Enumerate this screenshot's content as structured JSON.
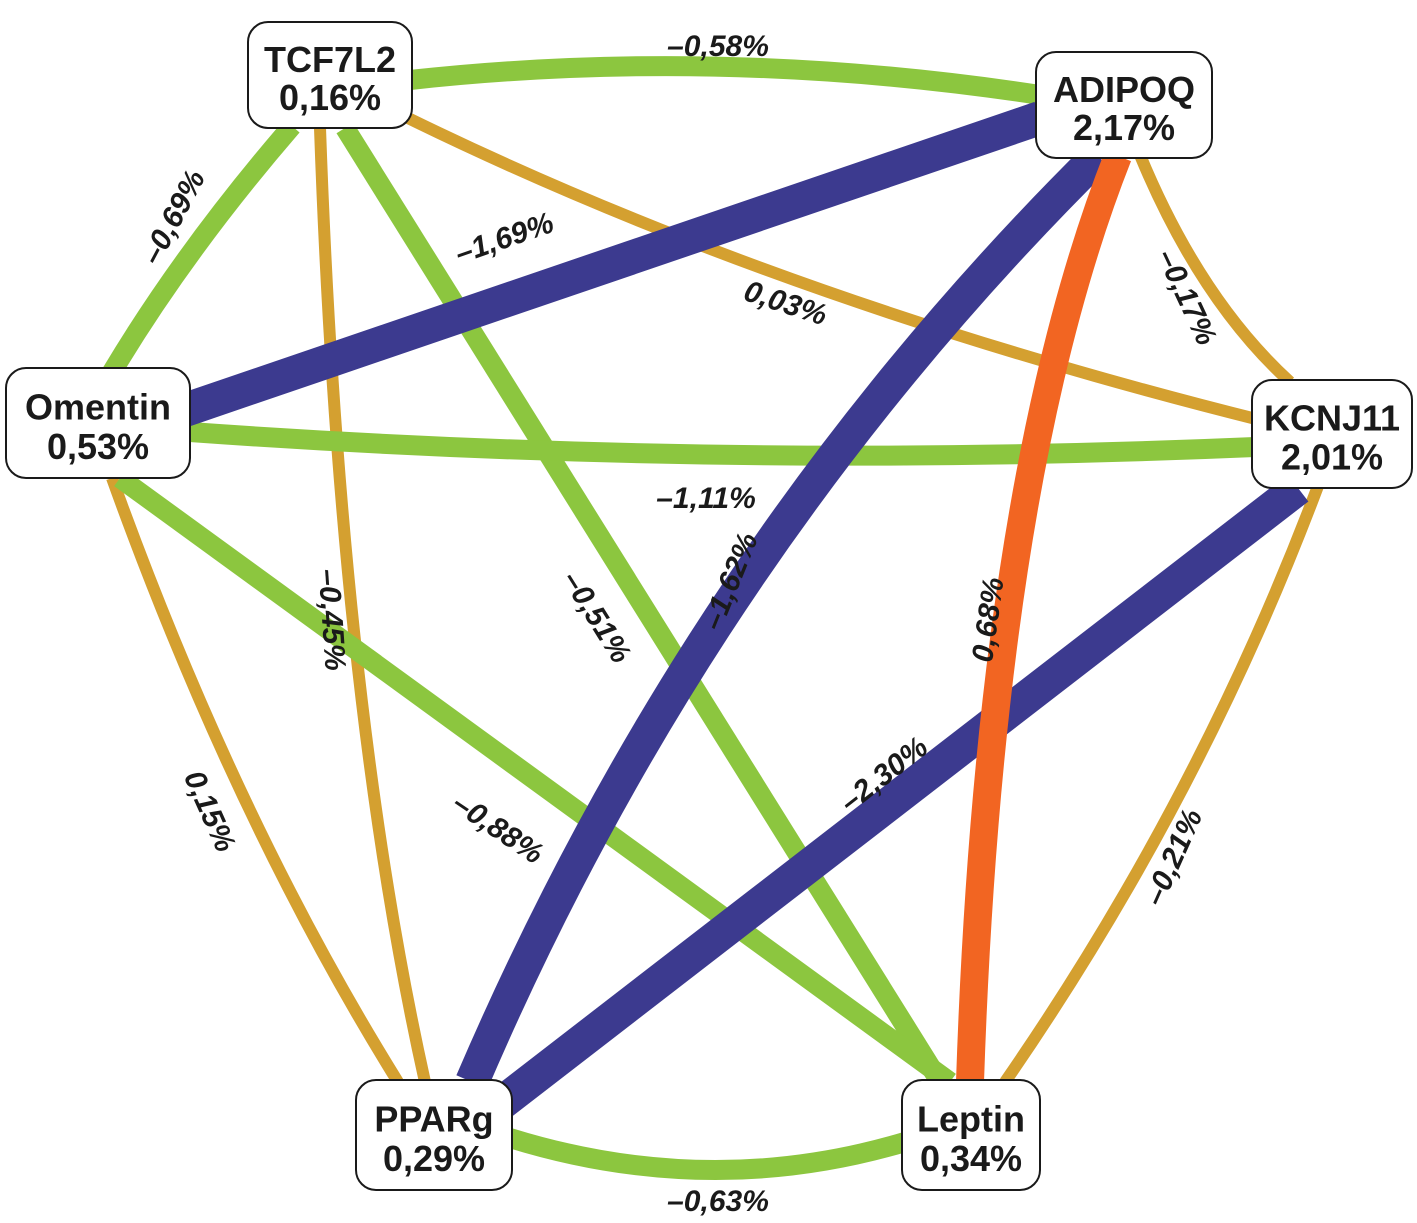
{
  "colors": {
    "weak_negative": "#8cc63f",
    "strong_negative": "#3c3a8f",
    "weak_positive": "#d4a030",
    "strong_positive": "#f26522"
  },
  "nodes": [
    {
      "id": "TCF7L2",
      "name": "TCF7L2",
      "value": "0,16%"
    },
    {
      "id": "ADIPOQ",
      "name": "ADIPOQ",
      "value": "2,17%"
    },
    {
      "id": "Omentin",
      "name": "Omentin",
      "value": "0,53%"
    },
    {
      "id": "KCNJ11",
      "name": "KCNJ11",
      "value": "2,01%"
    },
    {
      "id": "PPARg",
      "name": "PPARg",
      "value": "0,29%"
    },
    {
      "id": "Leptin",
      "name": "Leptin",
      "value": "0,34%"
    }
  ],
  "edges": [
    {
      "from": "TCF7L2",
      "to": "ADIPOQ",
      "label": "–0,58%",
      "kind": "weak_negative"
    },
    {
      "from": "TCF7L2",
      "to": "Omentin",
      "label": "–0,69%",
      "kind": "weak_negative"
    },
    {
      "from": "TCF7L2",
      "to": "KCNJ11",
      "label": "0,03%",
      "kind": "weak_positive"
    },
    {
      "from": "TCF7L2",
      "to": "PPARg",
      "label": "–0,45%",
      "kind": "weak_positive"
    },
    {
      "from": "TCF7L2",
      "to": "Leptin",
      "label": "–0,51%",
      "kind": "weak_negative"
    },
    {
      "from": "Omentin",
      "to": "ADIPOQ",
      "label": "–1,69%",
      "kind": "strong_negative"
    },
    {
      "from": "ADIPOQ",
      "to": "KCNJ11",
      "label": "–0,17%",
      "kind": "weak_positive"
    },
    {
      "from": "ADIPOQ",
      "to": "PPARg",
      "label": "–1,62%",
      "kind": "strong_negative"
    },
    {
      "from": "ADIPOQ",
      "to": "Leptin",
      "label": "0,68%",
      "kind": "strong_positive"
    },
    {
      "from": "Omentin",
      "to": "KCNJ11",
      "label": "–1,11%",
      "kind": "weak_negative"
    },
    {
      "from": "Omentin",
      "to": "Leptin",
      "label": "–0,88%",
      "kind": "weak_negative"
    },
    {
      "from": "Omentin",
      "to": "PPARg",
      "label": "0,15%",
      "kind": "weak_positive"
    },
    {
      "from": "KCNJ11",
      "to": "PPARg",
      "label": "–2,30%",
      "kind": "strong_negative"
    },
    {
      "from": "KCNJ11",
      "to": "Leptin",
      "label": "–0,21%",
      "kind": "weak_positive"
    },
    {
      "from": "PPARg",
      "to": "Leptin",
      "label": "–0,63%",
      "kind": "weak_negative"
    }
  ]
}
